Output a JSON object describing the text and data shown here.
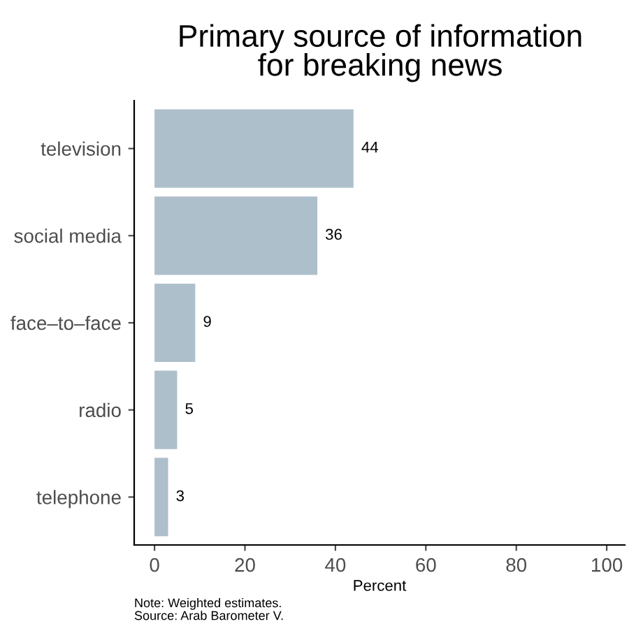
{
  "chart_data": {
    "type": "bar",
    "orientation": "horizontal",
    "title": "Primary source of information\nfor breaking news",
    "xlabel": "Percent",
    "categories": [
      "television",
      "social media",
      "face–to–face",
      "radio",
      "telephone"
    ],
    "values": [
      44,
      36,
      9,
      5,
      3
    ],
    "color": "#adbfcb",
    "data_labels": true,
    "xlim": [
      -4.5,
      104
    ],
    "xticks": [
      0,
      20,
      40,
      60,
      80,
      100
    ],
    "grid": false,
    "annotations": [
      "Note: Weighted estimates.\nSource: Arab Barometer V."
    ]
  }
}
